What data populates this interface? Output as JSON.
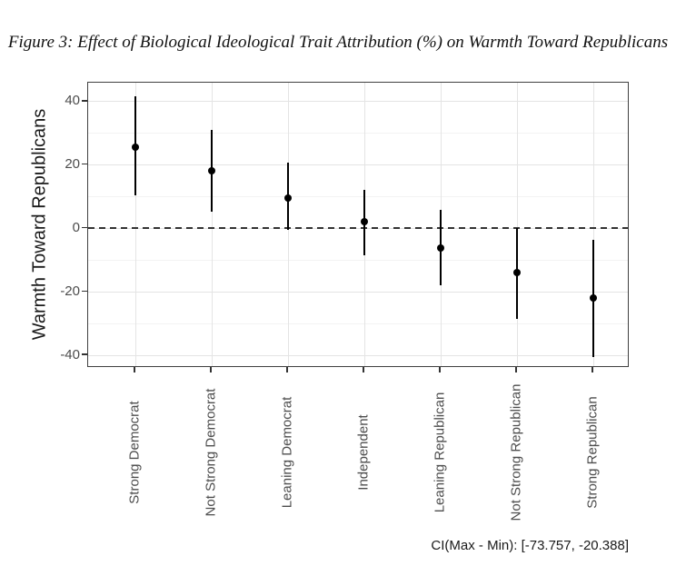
{
  "figure": {
    "title": "Figure 3: Effect of Biological Ideological Trait Attribution (%) on Warmth Toward Republicans"
  },
  "chart_data": {
    "type": "pointrange",
    "title": "Figure 3: Effect of Biological Ideological Trait Attribution (%) on Warmth Toward Republicans",
    "xlabel": "",
    "ylabel": "Warmth Toward Republicans",
    "caption": "CI(Max - Min): [-73.757, -20.388]",
    "categories": [
      "Strong Democrat",
      "Not Strong Democrat",
      "Leaning Democrat",
      "Independent",
      "Leaning Republican",
      "Not Strong Republican",
      "Strong Republican"
    ],
    "series": [
      {
        "name": "estimate",
        "values": [
          25.6,
          18.2,
          9.7,
          2.2,
          -6.1,
          -14.0,
          -22.0
        ]
      },
      {
        "name": "ci_low",
        "values": [
          10.5,
          5.4,
          -0.3,
          -8.5,
          -18.0,
          -28.5,
          -40.6
        ]
      },
      {
        "name": "ci_high",
        "values": [
          41.6,
          31.0,
          20.8,
          12.1,
          5.8,
          0.2,
          -3.5
        ]
      }
    ],
    "reference_line": 0,
    "ylim": [
      -44,
      46
    ],
    "yticks": [
      40,
      20,
      0,
      -20,
      -40
    ],
    "yticks_minor": [
      30,
      10,
      -10,
      -30
    ],
    "grid": true,
    "legend": "none",
    "colors": {
      "point": "#000000",
      "errorbar": "#000000",
      "grid_major": "#e4e4e4",
      "grid_minor": "#f3f3f3",
      "panel_border": "#404040",
      "axis_text": "#4d4d4d",
      "axis_title": "#1a1a1a",
      "reference_line": "#333333",
      "background": "#ffffff"
    }
  }
}
